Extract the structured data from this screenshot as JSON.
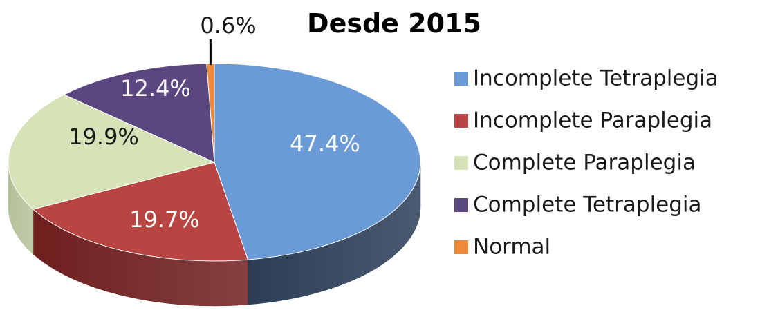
{
  "chart_data": {
    "type": "pie",
    "title": "Desde 2015",
    "labels": [
      "Incomplete Tetraplegia",
      "Incomplete Paraplegia",
      "Complete Paraplegia",
      "Complete Tetraplegia",
      "Normal"
    ],
    "values": [
      47.4,
      19.7,
      19.9,
      12.4,
      0.6
    ],
    "value_labels": [
      "47.4%",
      "19.7%",
      "19.9%",
      "12.4%",
      "0.6%"
    ],
    "colors": [
      "#6b9bd6",
      "#b84542",
      "#d6e2b7",
      "#5c4680",
      "#f0893a"
    ],
    "side_colors": [
      "#2b3d57",
      "#6e1f1e",
      "#b5c29a",
      "#392a52",
      "#b8651f"
    ],
    "label_colors": [
      "#ffffff",
      "#ffffff",
      "#1a1a1a",
      "#ffffff",
      "#1a1a1a"
    ],
    "legend_position": "right",
    "style": "3d-exploded-tilt"
  }
}
